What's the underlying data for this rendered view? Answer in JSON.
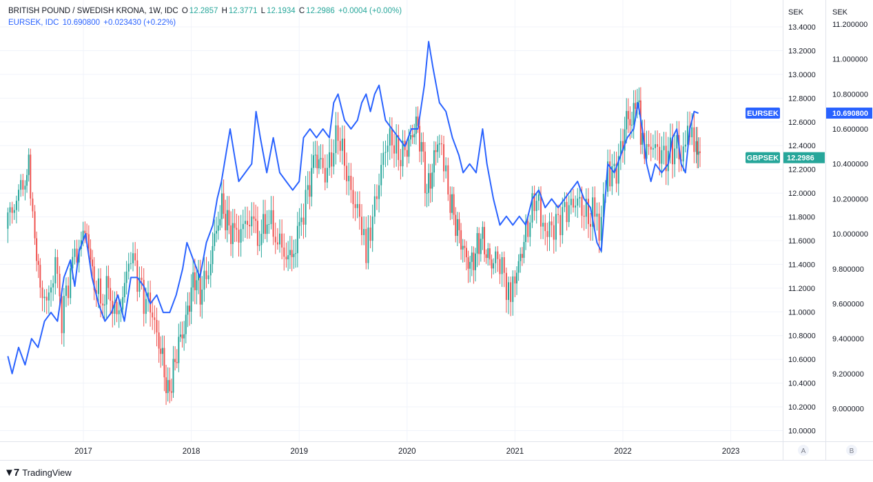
{
  "header": {
    "symbol_title": "BRITISH POUND / SWEDISH KRONA, 1W, IDC",
    "o_label": "O",
    "o_value": "12.2857",
    "h_label": "H",
    "h_value": "12.3771",
    "l_label": "L",
    "l_value": "12.1934",
    "c_label": "C",
    "c_value": "12.2986",
    "change": "+0.0004 (+0.00%)",
    "compare_symbol": "EURSEK, IDC",
    "compare_value": "10.690800",
    "compare_change": "+0.023430 (+0.22%)"
  },
  "scale_a": {
    "unit": "SEK",
    "button": "A"
  },
  "scale_b": {
    "unit": "SEK",
    "button": "B"
  },
  "branding": {
    "logo_text": "TradingView"
  },
  "colors": {
    "up": "#26a69a",
    "down": "#ef5350",
    "line": "#2962ff",
    "grid": "#f0f3fa",
    "text": "#131722"
  },
  "chart_data": {
    "type": "line",
    "title": "BRITISH POUND / SWEDISH KRONA, 1W, IDC",
    "x_ticks": [
      "2017",
      "2018",
      "2019",
      "2020",
      "2021",
      "2022",
      "2023"
    ],
    "left_axis_ticks": [
      "13.4000",
      "13.2000",
      "13.0000",
      "12.8000",
      "12.6000",
      "12.4000",
      "12.2000",
      "12.0000",
      "11.8000",
      "11.6000",
      "11.4000",
      "11.2000",
      "11.0000",
      "10.8000",
      "10.6000",
      "10.4000",
      "10.2000",
      "10.0000"
    ],
    "right_axis_ticks": [
      "11.200000",
      "11.000000",
      "10.800000",
      "10.600000",
      "10.400000",
      "10.200000",
      "10.000000",
      "9.800000",
      "9.600000",
      "9.400000",
      "9.200000",
      "9.000000"
    ],
    "ylim_a": [
      9.9,
      13.6
    ],
    "ylim_b": [
      8.9,
      11.3
    ],
    "grid": true,
    "last_value_labels": [
      {
        "name": "EURSEK",
        "value": "10.690800",
        "axis": "B",
        "color": "#2962ff"
      },
      {
        "name": "GBPSEK",
        "value": "12.2986",
        "axis": "A",
        "color": "#26a69a"
      }
    ],
    "series": [
      {
        "name": "GBPSEK",
        "kind": "candlestick",
        "axis": "A",
        "closes": [
          {
            "x": 2016.3,
            "y": 11.75
          },
          {
            "x": 2016.38,
            "y": 11.9
          },
          {
            "x": 2016.46,
            "y": 12.1
          },
          {
            "x": 2016.51,
            "y": 12.2
          },
          {
            "x": 2016.55,
            "y": 11.9
          },
          {
            "x": 2016.6,
            "y": 11.3
          },
          {
            "x": 2016.68,
            "y": 11.05
          },
          {
            "x": 2016.76,
            "y": 11.4
          },
          {
            "x": 2016.82,
            "y": 10.95
          },
          {
            "x": 2016.9,
            "y": 11.35
          },
          {
            "x": 2016.98,
            "y": 11.55
          },
          {
            "x": 2017.05,
            "y": 11.7
          },
          {
            "x": 2017.1,
            "y": 11.3
          },
          {
            "x": 2017.18,
            "y": 11.1
          },
          {
            "x": 2017.25,
            "y": 11.2
          },
          {
            "x": 2017.33,
            "y": 10.95
          },
          {
            "x": 2017.4,
            "y": 11.2
          },
          {
            "x": 2017.46,
            "y": 11.5
          },
          {
            "x": 2017.52,
            "y": 11.3
          },
          {
            "x": 2017.58,
            "y": 11.1
          },
          {
            "x": 2017.64,
            "y": 11.05
          },
          {
            "x": 2017.7,
            "y": 10.8
          },
          {
            "x": 2017.75,
            "y": 10.6
          },
          {
            "x": 2017.8,
            "y": 10.3
          },
          {
            "x": 2017.85,
            "y": 10.5
          },
          {
            "x": 2017.9,
            "y": 10.75
          },
          {
            "x": 2017.95,
            "y": 10.85
          },
          {
            "x": 2018.0,
            "y": 11.1
          },
          {
            "x": 2018.05,
            "y": 11.3
          },
          {
            "x": 2018.1,
            "y": 11.15
          },
          {
            "x": 2018.18,
            "y": 11.35
          },
          {
            "x": 2018.25,
            "y": 11.7
          },
          {
            "x": 2018.3,
            "y": 11.9
          },
          {
            "x": 2018.35,
            "y": 11.75
          },
          {
            "x": 2018.42,
            "y": 11.65
          },
          {
            "x": 2018.5,
            "y": 11.7
          },
          {
            "x": 2018.58,
            "y": 11.8
          },
          {
            "x": 2018.65,
            "y": 11.6
          },
          {
            "x": 2018.72,
            "y": 11.8
          },
          {
            "x": 2018.8,
            "y": 11.65
          },
          {
            "x": 2018.88,
            "y": 11.5
          },
          {
            "x": 2018.95,
            "y": 11.45
          },
          {
            "x": 2019.02,
            "y": 11.7
          },
          {
            "x": 2019.08,
            "y": 11.95
          },
          {
            "x": 2019.15,
            "y": 12.25
          },
          {
            "x": 2019.2,
            "y": 12.3
          },
          {
            "x": 2019.26,
            "y": 12.15
          },
          {
            "x": 2019.32,
            "y": 12.3
          },
          {
            "x": 2019.38,
            "y": 12.5
          },
          {
            "x": 2019.44,
            "y": 12.25
          },
          {
            "x": 2019.5,
            "y": 12.0
          },
          {
            "x": 2019.56,
            "y": 11.85
          },
          {
            "x": 2019.6,
            "y": 11.75
          },
          {
            "x": 2019.64,
            "y": 11.55
          },
          {
            "x": 2019.7,
            "y": 11.8
          },
          {
            "x": 2019.76,
            "y": 12.1
          },
          {
            "x": 2019.82,
            "y": 12.4
          },
          {
            "x": 2019.88,
            "y": 12.45
          },
          {
            "x": 2019.94,
            "y": 12.3
          },
          {
            "x": 2020.0,
            "y": 12.35
          },
          {
            "x": 2020.05,
            "y": 12.45
          },
          {
            "x": 2020.1,
            "y": 12.6
          },
          {
            "x": 2020.15,
            "y": 12.4
          },
          {
            "x": 2020.2,
            "y": 12.0
          },
          {
            "x": 2020.25,
            "y": 12.2
          },
          {
            "x": 2020.3,
            "y": 12.45
          },
          {
            "x": 2020.34,
            "y": 12.35
          },
          {
            "x": 2020.4,
            "y": 12.0
          },
          {
            "x": 2020.45,
            "y": 11.8
          },
          {
            "x": 2020.5,
            "y": 11.65
          },
          {
            "x": 2020.55,
            "y": 11.5
          },
          {
            "x": 2020.6,
            "y": 11.4
          },
          {
            "x": 2020.65,
            "y": 11.5
          },
          {
            "x": 2020.7,
            "y": 11.65
          },
          {
            "x": 2020.75,
            "y": 11.5
          },
          {
            "x": 2020.8,
            "y": 11.4
          },
          {
            "x": 2020.86,
            "y": 11.45
          },
          {
            "x": 2020.92,
            "y": 11.3
          },
          {
            "x": 2020.96,
            "y": 11.15
          },
          {
            "x": 2021.0,
            "y": 11.25
          },
          {
            "x": 2021.05,
            "y": 11.4
          },
          {
            "x": 2021.1,
            "y": 11.6
          },
          {
            "x": 2021.16,
            "y": 11.8
          },
          {
            "x": 2021.22,
            "y": 12.0
          },
          {
            "x": 2021.26,
            "y": 11.75
          },
          {
            "x": 2021.3,
            "y": 11.65
          },
          {
            "x": 2021.36,
            "y": 11.7
          },
          {
            "x": 2021.42,
            "y": 11.75
          },
          {
            "x": 2021.48,
            "y": 11.85
          },
          {
            "x": 2021.54,
            "y": 11.9
          },
          {
            "x": 2021.6,
            "y": 11.95
          },
          {
            "x": 2021.66,
            "y": 11.85
          },
          {
            "x": 2021.72,
            "y": 11.8
          },
          {
            "x": 2021.76,
            "y": 11.85
          },
          {
            "x": 2021.8,
            "y": 11.6
          },
          {
            "x": 2021.84,
            "y": 11.95
          },
          {
            "x": 2021.88,
            "y": 12.2
          },
          {
            "x": 2021.94,
            "y": 12.15
          },
          {
            "x": 2022.0,
            "y": 12.35
          },
          {
            "x": 2022.05,
            "y": 12.65
          },
          {
            "x": 2022.1,
            "y": 12.6
          },
          {
            "x": 2022.15,
            "y": 12.85
          },
          {
            "x": 2022.18,
            "y": 12.45
          },
          {
            "x": 2022.22,
            "y": 12.3
          },
          {
            "x": 2022.28,
            "y": 12.4
          },
          {
            "x": 2022.34,
            "y": 12.35
          },
          {
            "x": 2022.4,
            "y": 12.3
          },
          {
            "x": 2022.46,
            "y": 12.35
          },
          {
            "x": 2022.52,
            "y": 12.4
          },
          {
            "x": 2022.56,
            "y": 12.3
          },
          {
            "x": 2022.6,
            "y": 12.45
          },
          {
            "x": 2022.64,
            "y": 12.5
          },
          {
            "x": 2022.68,
            "y": 12.35
          },
          {
            "x": 2022.7,
            "y": 12.3
          }
        ]
      },
      {
        "name": "EURSEK",
        "kind": "line",
        "axis": "B",
        "points": [
          {
            "x": 2016.3,
            "y": 9.3
          },
          {
            "x": 2016.34,
            "y": 9.2
          },
          {
            "x": 2016.4,
            "y": 9.35
          },
          {
            "x": 2016.46,
            "y": 9.25
          },
          {
            "x": 2016.52,
            "y": 9.4
          },
          {
            "x": 2016.58,
            "y": 9.35
          },
          {
            "x": 2016.64,
            "y": 9.5
          },
          {
            "x": 2016.7,
            "y": 9.55
          },
          {
            "x": 2016.76,
            "y": 9.5
          },
          {
            "x": 2016.82,
            "y": 9.75
          },
          {
            "x": 2016.88,
            "y": 9.85
          },
          {
            "x": 2016.92,
            "y": 9.7
          },
          {
            "x": 2016.96,
            "y": 9.9
          },
          {
            "x": 2017.02,
            "y": 10.0
          },
          {
            "x": 2017.08,
            "y": 9.75
          },
          {
            "x": 2017.14,
            "y": 9.6
          },
          {
            "x": 2017.2,
            "y": 9.5
          },
          {
            "x": 2017.26,
            "y": 9.55
          },
          {
            "x": 2017.32,
            "y": 9.65
          },
          {
            "x": 2017.38,
            "y": 9.5
          },
          {
            "x": 2017.44,
            "y": 9.75
          },
          {
            "x": 2017.5,
            "y": 9.75
          },
          {
            "x": 2017.56,
            "y": 9.7
          },
          {
            "x": 2017.62,
            "y": 9.6
          },
          {
            "x": 2017.68,
            "y": 9.65
          },
          {
            "x": 2017.74,
            "y": 9.55
          },
          {
            "x": 2017.8,
            "y": 9.55
          },
          {
            "x": 2017.86,
            "y": 9.65
          },
          {
            "x": 2017.92,
            "y": 9.8
          },
          {
            "x": 2017.96,
            "y": 9.95
          },
          {
            "x": 2018.02,
            "y": 9.85
          },
          {
            "x": 2018.08,
            "y": 9.75
          },
          {
            "x": 2018.14,
            "y": 9.95
          },
          {
            "x": 2018.2,
            "y": 10.05
          },
          {
            "x": 2018.24,
            "y": 10.2
          },
          {
            "x": 2018.28,
            "y": 10.3
          },
          {
            "x": 2018.32,
            "y": 10.45
          },
          {
            "x": 2018.36,
            "y": 10.6
          },
          {
            "x": 2018.4,
            "y": 10.45
          },
          {
            "x": 2018.44,
            "y": 10.3
          },
          {
            "x": 2018.5,
            "y": 10.35
          },
          {
            "x": 2018.56,
            "y": 10.4
          },
          {
            "x": 2018.6,
            "y": 10.7
          },
          {
            "x": 2018.64,
            "y": 10.55
          },
          {
            "x": 2018.7,
            "y": 10.35
          },
          {
            "x": 2018.76,
            "y": 10.55
          },
          {
            "x": 2018.82,
            "y": 10.35
          },
          {
            "x": 2018.88,
            "y": 10.3
          },
          {
            "x": 2018.94,
            "y": 10.25
          },
          {
            "x": 2019.0,
            "y": 10.3
          },
          {
            "x": 2019.04,
            "y": 10.55
          },
          {
            "x": 2019.1,
            "y": 10.6
          },
          {
            "x": 2019.16,
            "y": 10.55
          },
          {
            "x": 2019.22,
            "y": 10.6
          },
          {
            "x": 2019.28,
            "y": 10.55
          },
          {
            "x": 2019.32,
            "y": 10.75
          },
          {
            "x": 2019.36,
            "y": 10.8
          },
          {
            "x": 2019.42,
            "y": 10.65
          },
          {
            "x": 2019.48,
            "y": 10.6
          },
          {
            "x": 2019.54,
            "y": 10.65
          },
          {
            "x": 2019.58,
            "y": 10.75
          },
          {
            "x": 2019.62,
            "y": 10.8
          },
          {
            "x": 2019.66,
            "y": 10.7
          },
          {
            "x": 2019.7,
            "y": 10.8
          },
          {
            "x": 2019.74,
            "y": 10.85
          },
          {
            "x": 2019.8,
            "y": 10.65
          },
          {
            "x": 2019.86,
            "y": 10.6
          },
          {
            "x": 2019.92,
            "y": 10.55
          },
          {
            "x": 2019.98,
            "y": 10.5
          },
          {
            "x": 2020.04,
            "y": 10.6
          },
          {
            "x": 2020.1,
            "y": 10.6
          },
          {
            "x": 2020.16,
            "y": 10.85
          },
          {
            "x": 2020.2,
            "y": 11.1
          },
          {
            "x": 2020.24,
            "y": 10.95
          },
          {
            "x": 2020.3,
            "y": 10.75
          },
          {
            "x": 2020.36,
            "y": 10.7
          },
          {
            "x": 2020.42,
            "y": 10.55
          },
          {
            "x": 2020.48,
            "y": 10.45
          },
          {
            "x": 2020.52,
            "y": 10.35
          },
          {
            "x": 2020.58,
            "y": 10.4
          },
          {
            "x": 2020.64,
            "y": 10.35
          },
          {
            "x": 2020.7,
            "y": 10.6
          },
          {
            "x": 2020.74,
            "y": 10.4
          },
          {
            "x": 2020.8,
            "y": 10.2
          },
          {
            "x": 2020.86,
            "y": 10.05
          },
          {
            "x": 2020.92,
            "y": 10.1
          },
          {
            "x": 2020.98,
            "y": 10.05
          },
          {
            "x": 2021.04,
            "y": 10.1
          },
          {
            "x": 2021.1,
            "y": 10.05
          },
          {
            "x": 2021.16,
            "y": 10.2
          },
          {
            "x": 2021.22,
            "y": 10.25
          },
          {
            "x": 2021.28,
            "y": 10.15
          },
          {
            "x": 2021.34,
            "y": 10.2
          },
          {
            "x": 2021.4,
            "y": 10.15
          },
          {
            "x": 2021.46,
            "y": 10.2
          },
          {
            "x": 2021.52,
            "y": 10.25
          },
          {
            "x": 2021.58,
            "y": 10.3
          },
          {
            "x": 2021.64,
            "y": 10.2
          },
          {
            "x": 2021.7,
            "y": 10.15
          },
          {
            "x": 2021.76,
            "y": 9.95
          },
          {
            "x": 2021.8,
            "y": 9.9
          },
          {
            "x": 2021.86,
            "y": 10.4
          },
          {
            "x": 2021.92,
            "y": 10.35
          },
          {
            "x": 2021.98,
            "y": 10.45
          },
          {
            "x": 2022.04,
            "y": 10.55
          },
          {
            "x": 2022.1,
            "y": 10.6
          },
          {
            "x": 2022.14,
            "y": 10.75
          },
          {
            "x": 2022.18,
            "y": 10.6
          },
          {
            "x": 2022.22,
            "y": 10.4
          },
          {
            "x": 2022.26,
            "y": 10.3
          },
          {
            "x": 2022.3,
            "y": 10.4
          },
          {
            "x": 2022.36,
            "y": 10.35
          },
          {
            "x": 2022.42,
            "y": 10.4
          },
          {
            "x": 2022.46,
            "y": 10.55
          },
          {
            "x": 2022.5,
            "y": 10.6
          },
          {
            "x": 2022.54,
            "y": 10.4
          },
          {
            "x": 2022.58,
            "y": 10.35
          },
          {
            "x": 2022.62,
            "y": 10.6
          },
          {
            "x": 2022.66,
            "y": 10.7
          },
          {
            "x": 2022.7,
            "y": 10.69
          }
        ]
      }
    ]
  }
}
